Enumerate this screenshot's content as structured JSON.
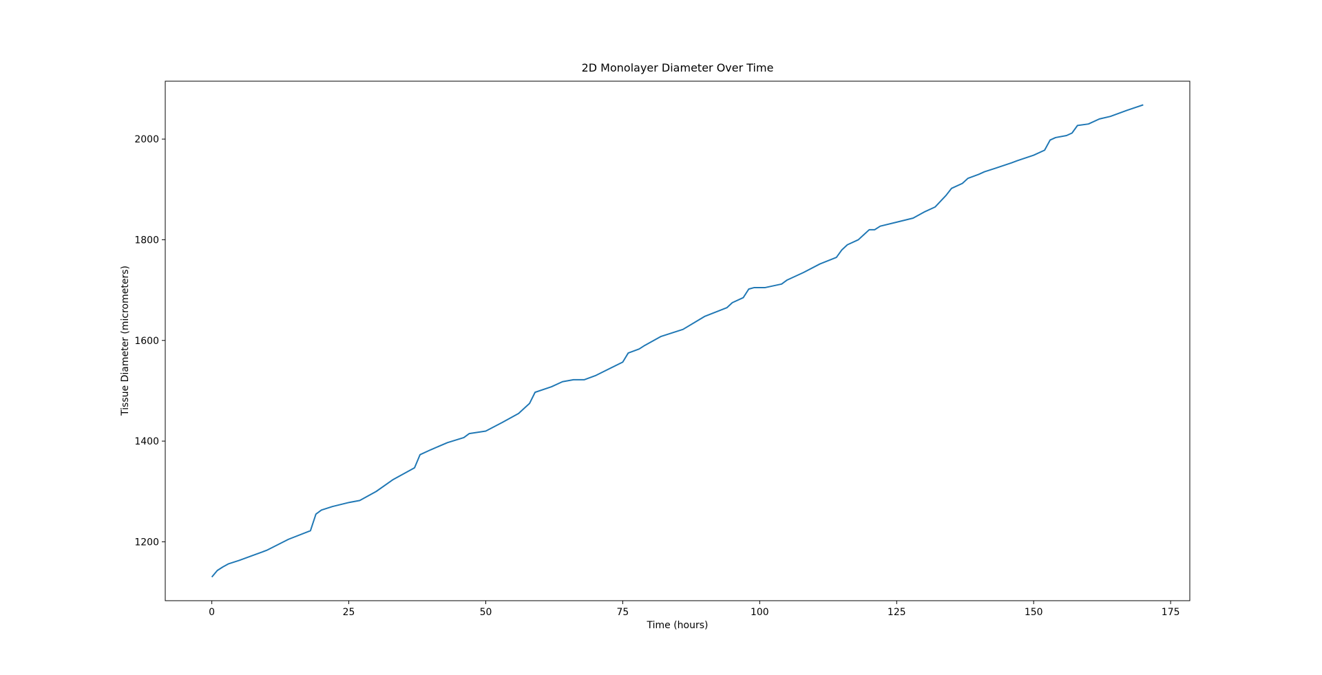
{
  "chart_data": {
    "type": "line",
    "title": "2D Monolayer Diameter Over Time",
    "xlabel": "Time (hours)",
    "ylabel": "Tissue Diameter (micrometers)",
    "x": [
      0,
      1,
      2,
      3,
      5,
      8,
      10,
      14,
      18,
      19,
      20,
      22,
      25,
      27,
      30,
      33,
      37,
      38,
      40,
      43,
      46,
      47,
      50,
      53,
      56,
      57,
      58,
      59,
      62,
      64,
      66,
      68,
      70,
      75,
      76,
      78,
      79,
      82,
      84,
      86,
      90,
      94,
      95,
      97,
      98,
      99,
      101,
      104,
      105,
      108,
      111,
      114,
      115,
      116,
      118,
      119,
      120,
      121,
      122,
      125,
      128,
      130,
      132,
      134,
      135,
      137,
      138,
      140,
      141,
      143,
      146,
      147,
      150,
      152,
      153,
      154,
      156,
      157,
      158,
      160,
      162,
      164,
      167,
      170
    ],
    "series": [
      {
        "name": "Tissue Diameter",
        "color": "#1f77b4",
        "values": [
          1130,
          1143,
          1150,
          1156,
          1163,
          1175,
          1183,
          1205,
          1222,
          1255,
          1263,
          1270,
          1278,
          1282,
          1300,
          1323,
          1347,
          1373,
          1383,
          1397,
          1407,
          1415,
          1420,
          1437,
          1455,
          1465,
          1475,
          1497,
          1508,
          1518,
          1522,
          1522,
          1530,
          1557,
          1575,
          1583,
          1590,
          1608,
          1615,
          1622,
          1648,
          1665,
          1675,
          1685,
          1702,
          1705,
          1705,
          1712,
          1720,
          1735,
          1752,
          1765,
          1780,
          1790,
          1800,
          1810,
          1820,
          1820,
          1827,
          1835,
          1843,
          1855,
          1865,
          1888,
          1902,
          1912,
          1922,
          1930,
          1935,
          1942,
          1953,
          1957,
          1968,
          1978,
          1998,
          2003,
          2007,
          2012,
          2027,
          2030,
          2040,
          2045,
          2057,
          2068
        ]
      }
    ],
    "xlim": [
      -8.5,
      178.5
    ],
    "ylim": [
      1083,
      2115
    ],
    "xticks": [
      0,
      25,
      50,
      75,
      100,
      125,
      150,
      175
    ],
    "yticks": [
      1200,
      1400,
      1600,
      1800,
      2000
    ]
  }
}
